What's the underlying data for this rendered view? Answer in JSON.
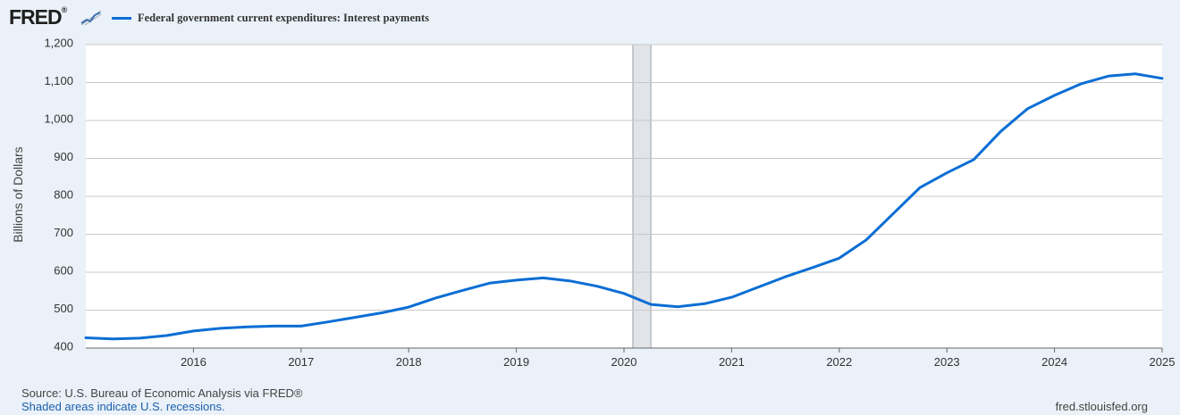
{
  "header": {
    "logo_text": "FRED",
    "logo_mark": "®",
    "logo_icon": "trend-line-icon"
  },
  "colors": {
    "series": "#0b6ed4",
    "recession_fill": "#e1e4e8",
    "background": "#eaf1f8",
    "plot_bg": "#ffffff",
    "grid": "#c8c8c8"
  },
  "footer": {
    "source": "Source: U.S. Bureau of Economic Analysis via FRED®",
    "note": "Shaded areas indicate U.S. recessions.",
    "site": "fred.stlouisfed.org"
  },
  "chart_data": {
    "type": "line",
    "title": "",
    "xlabel": "",
    "ylabel": "Billions of Dollars",
    "legend": "top-left",
    "grid": true,
    "ylim": [
      400,
      1200
    ],
    "yticks": [
      400,
      500,
      600,
      700,
      800,
      900,
      1000,
      1100,
      1200
    ],
    "ytick_labels": [
      "400",
      "500",
      "600",
      "700",
      "800",
      "900",
      "1,000",
      "1,100",
      "1,200"
    ],
    "xlim": [
      2015.0,
      2025.0
    ],
    "xticks": [
      2016,
      2017,
      2018,
      2019,
      2020,
      2021,
      2022,
      2023,
      2024,
      2025
    ],
    "xtick_labels": [
      "2016",
      "2017",
      "2018",
      "2019",
      "2020",
      "2021",
      "2022",
      "2023",
      "2024",
      "2025"
    ],
    "recessions": [
      [
        2020.083,
        2020.25
      ]
    ],
    "series": [
      {
        "name": "Federal government current expenditures: Interest payments",
        "x": [
          2015.0,
          2015.25,
          2015.5,
          2015.75,
          2016.0,
          2016.25,
          2016.5,
          2016.75,
          2017.0,
          2017.25,
          2017.5,
          2017.75,
          2018.0,
          2018.25,
          2018.5,
          2018.75,
          2019.0,
          2019.25,
          2019.5,
          2019.75,
          2020.0,
          2020.25,
          2020.5,
          2020.75,
          2021.0,
          2021.25,
          2021.5,
          2021.75,
          2022.0,
          2022.25,
          2022.5,
          2022.75,
          2023.0,
          2023.25,
          2023.5,
          2023.75,
          2024.0,
          2024.25,
          2024.5,
          2024.75,
          2025.0
        ],
        "values": [
          427,
          424,
          426,
          433,
          445,
          452,
          456,
          458,
          458,
          469,
          481,
          493,
          508,
          532,
          552,
          571,
          579,
          585,
          577,
          563,
          544,
          515,
          509,
          517,
          534,
          561,
          588,
          612,
          637,
          685,
          754,
          823,
          862,
          897,
          971,
          1031,
          1066,
          1097,
          1117,
          1123,
          1111
        ]
      }
    ]
  }
}
